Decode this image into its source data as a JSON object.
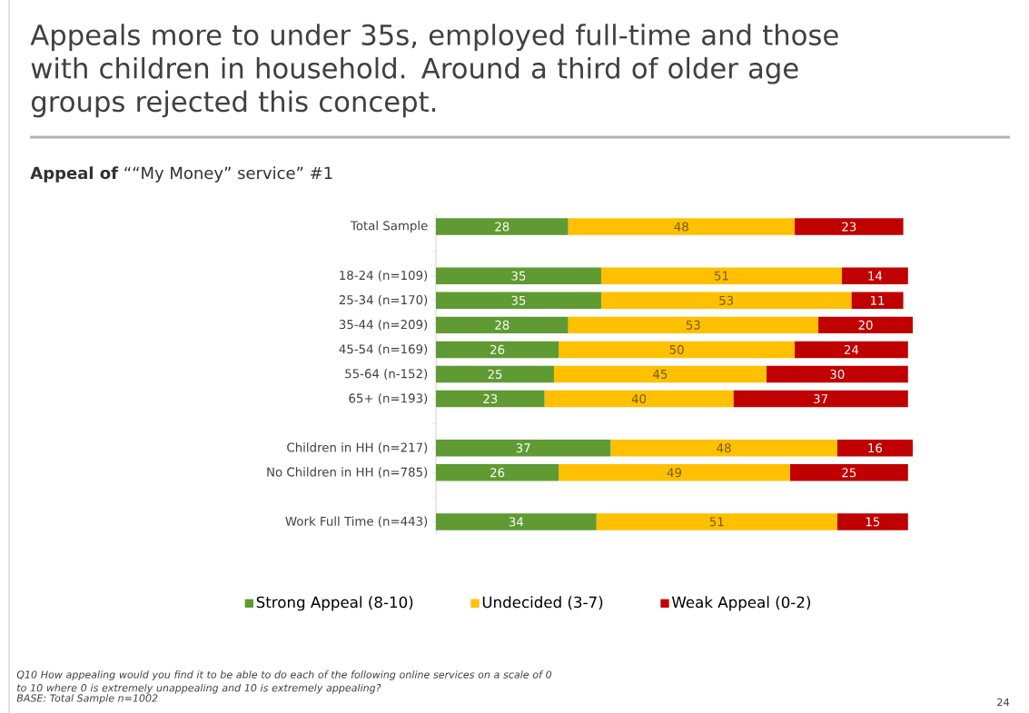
{
  "chart_data": {
    "type": "bar",
    "orientation": "horizontal",
    "stacked": true,
    "data_labels": true,
    "legend": "bottom",
    "title": "Appeals more to under 35s, employed full-time and those with children in household.  Around a third of older age groups rejected this concept.",
    "subtitle": "**Appeal of** ““My Money” service” #1",
    "categories": [
      "Total Sample",
      null,
      "18-24 (n=109)",
      "25-34 (n=170)",
      "35-44 (n=209)",
      "45-54 (n=169)",
      "55-64 (n-152)",
      "65+ (n=193)",
      null,
      "Children in HH (n=217)",
      "No Children in HH (n=785)",
      null,
      "Work Full Time (n=443)"
    ],
    "series": [
      {
        "name": "Strong Appeal (8-10)",
        "color": "#5f9a32",
        "values": [
          28,
          null,
          35,
          35,
          28,
          26,
          25,
          23,
          null,
          37,
          26,
          null,
          34
        ]
      },
      {
        "name": "Undecided (3-7)",
        "color": "#ffc000",
        "values": [
          48,
          null,
          51,
          53,
          53,
          50,
          45,
          40,
          null,
          48,
          49,
          null,
          51
        ]
      },
      {
        "name": "Weak Appeal (0-2)",
        "color": "#c00000",
        "values": [
          23,
          null,
          14,
          11,
          20,
          24,
          30,
          37,
          null,
          16,
          25,
          null,
          15
        ]
      }
    ],
    "annotations": [
      "Q10 How appealing would you find it to be able to do each of the following online services on a scale of 0 to 10 where 0 is extremely unappealing and 10 is extremely appealing?",
      "BASE: Total Sample n=1002",
      "24"
    ]
  }
}
